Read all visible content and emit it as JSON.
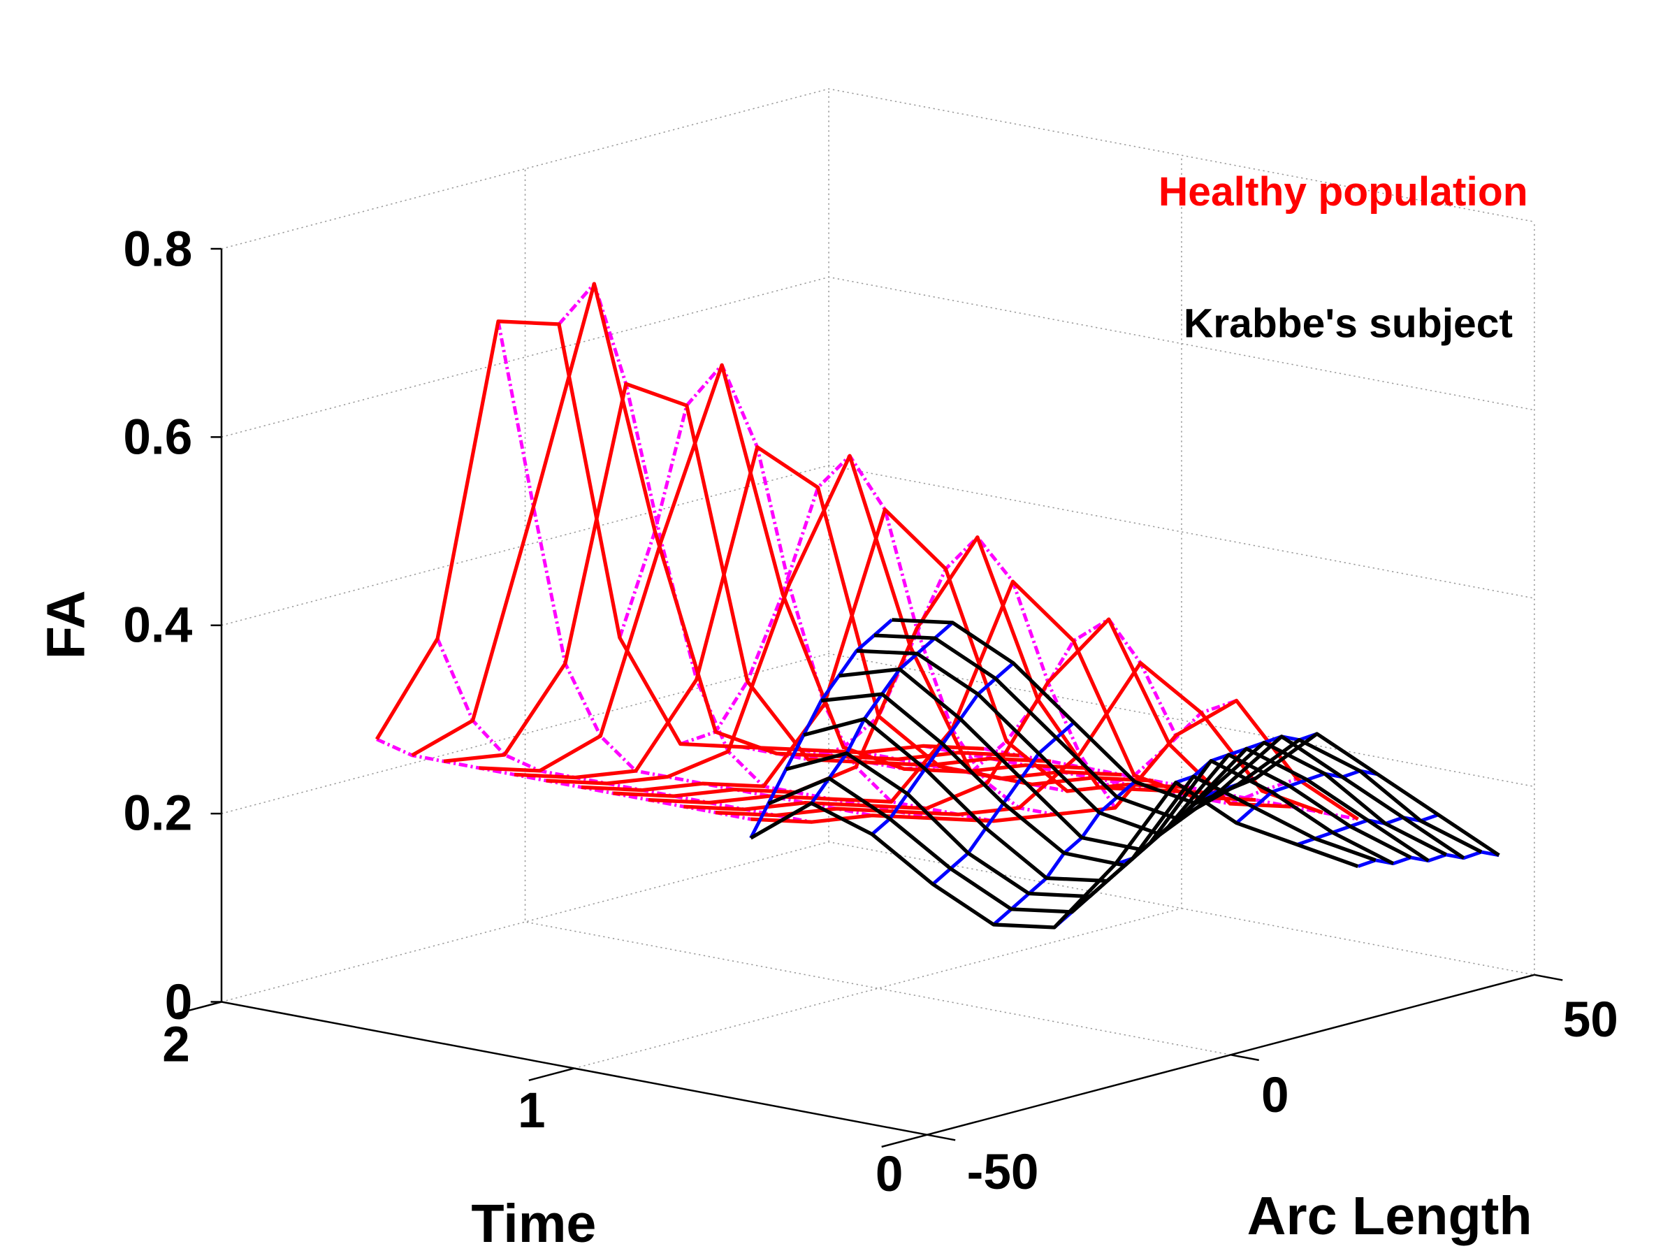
{
  "chart_data": {
    "type": "surface-mesh",
    "xlabel": "Arc Length",
    "ylabel": "Time",
    "zlabel": "FA",
    "xlim": [
      -50,
      50
    ],
    "ylim": [
      0,
      2
    ],
    "zlim": [
      0,
      0.8
    ],
    "grid": true,
    "x_ticks": [
      "-50",
      "0",
      "50"
    ],
    "x_tick_values": [
      -50,
      0,
      50
    ],
    "y_ticks": [
      "0",
      "1",
      "2"
    ],
    "y_tick_values": [
      0,
      1,
      2
    ],
    "z_ticks": [
      "0",
      "0.2",
      "0.4",
      "0.6",
      "0.8"
    ],
    "z_tick_values": [
      0,
      0.2,
      0.4,
      0.6,
      0.8
    ],
    "legend": {
      "placement": "top-right",
      "entries": [
        {
          "label": "Healthy population",
          "color": "#ff0000"
        },
        {
          "label": "Krabbe's subject",
          "color": "#000000"
        }
      ]
    },
    "series": [
      {
        "name": "Healthy population",
        "line_color_arc": "#ff0000",
        "line_color_time": "#ff00ff",
        "arc_length": [
          -50,
          -40,
          -30,
          -20,
          -10,
          0,
          10,
          20,
          30,
          40,
          50
        ],
        "time": [
          1.56,
          1.46,
          1.37,
          1.27,
          1.17,
          1.08,
          0.98,
          0.89,
          0.79,
          0.69,
          0.6,
          0.5
        ],
        "FA": [
          [
            0.31,
            0.4,
            0.72,
            0.7,
            0.35,
            0.22,
            0.2,
            0.18,
            0.16,
            0.15,
            0.13
          ],
          [
            0.3,
            0.32,
            0.53,
            0.75,
            0.47,
            0.24,
            0.2,
            0.18,
            0.16,
            0.15,
            0.13
          ],
          [
            0.3,
            0.29,
            0.37,
            0.65,
            0.61,
            0.3,
            0.2,
            0.18,
            0.16,
            0.15,
            0.13
          ],
          [
            0.3,
            0.28,
            0.3,
            0.49,
            0.66,
            0.4,
            0.22,
            0.18,
            0.16,
            0.15,
            0.13
          ],
          [
            0.3,
            0.28,
            0.27,
            0.35,
            0.58,
            0.52,
            0.26,
            0.19,
            0.16,
            0.15,
            0.13
          ],
          [
            0.3,
            0.28,
            0.27,
            0.28,
            0.44,
            0.56,
            0.34,
            0.19,
            0.16,
            0.15,
            0.13
          ],
          [
            0.3,
            0.28,
            0.27,
            0.25,
            0.32,
            0.51,
            0.43,
            0.23,
            0.16,
            0.15,
            0.13
          ],
          [
            0.3,
            0.28,
            0.27,
            0.25,
            0.26,
            0.39,
            0.47,
            0.28,
            0.17,
            0.15,
            0.13
          ],
          [
            0.3,
            0.28,
            0.27,
            0.25,
            0.23,
            0.29,
            0.43,
            0.35,
            0.19,
            0.15,
            0.13
          ],
          [
            0.3,
            0.28,
            0.27,
            0.25,
            0.23,
            0.24,
            0.33,
            0.38,
            0.23,
            0.15,
            0.13
          ],
          [
            0.3,
            0.28,
            0.27,
            0.25,
            0.23,
            0.22,
            0.26,
            0.34,
            0.27,
            0.17,
            0.13
          ],
          [
            0.3,
            0.28,
            0.27,
            0.25,
            0.23,
            0.22,
            0.21,
            0.27,
            0.29,
            0.19,
            0.13
          ]
        ]
      },
      {
        "name": "Krabbe's subject",
        "line_color_arc": "#000000",
        "line_color_time": "#0000ff",
        "arc_length": [
          -50,
          -40,
          -30,
          -20,
          -10,
          0,
          10,
          20,
          30,
          40,
          50
        ],
        "time": [
          0.5,
          0.45,
          0.4,
          0.35,
          0.3,
          0.25,
          0.2,
          0.15,
          0.1
        ],
        "FA": [
          [
            0.28,
            0.3,
            0.25,
            0.18,
            0.12,
            0.1,
            0.15,
            0.22,
            0.16,
            0.12,
            0.08
          ],
          [
            0.32,
            0.33,
            0.27,
            0.2,
            0.14,
            0.12,
            0.16,
            0.23,
            0.18,
            0.13,
            0.09
          ],
          [
            0.36,
            0.36,
            0.3,
            0.22,
            0.16,
            0.14,
            0.18,
            0.25,
            0.2,
            0.14,
            0.09
          ],
          [
            0.4,
            0.4,
            0.33,
            0.25,
            0.18,
            0.16,
            0.2,
            0.26,
            0.21,
            0.15,
            0.1
          ],
          [
            0.44,
            0.43,
            0.36,
            0.28,
            0.21,
            0.18,
            0.22,
            0.27,
            0.22,
            0.16,
            0.1
          ],
          [
            0.47,
            0.46,
            0.39,
            0.31,
            0.23,
            0.2,
            0.24,
            0.28,
            0.23,
            0.16,
            0.11
          ],
          [
            0.5,
            0.48,
            0.42,
            0.34,
            0.26,
            0.22,
            0.25,
            0.29,
            0.23,
            0.17,
            0.11
          ],
          [
            0.52,
            0.5,
            0.44,
            0.36,
            0.28,
            0.24,
            0.26,
            0.29,
            0.24,
            0.17,
            0.12
          ],
          [
            0.54,
            0.52,
            0.46,
            0.38,
            0.3,
            0.26,
            0.27,
            0.3,
            0.24,
            0.18,
            0.12
          ]
        ]
      }
    ]
  }
}
